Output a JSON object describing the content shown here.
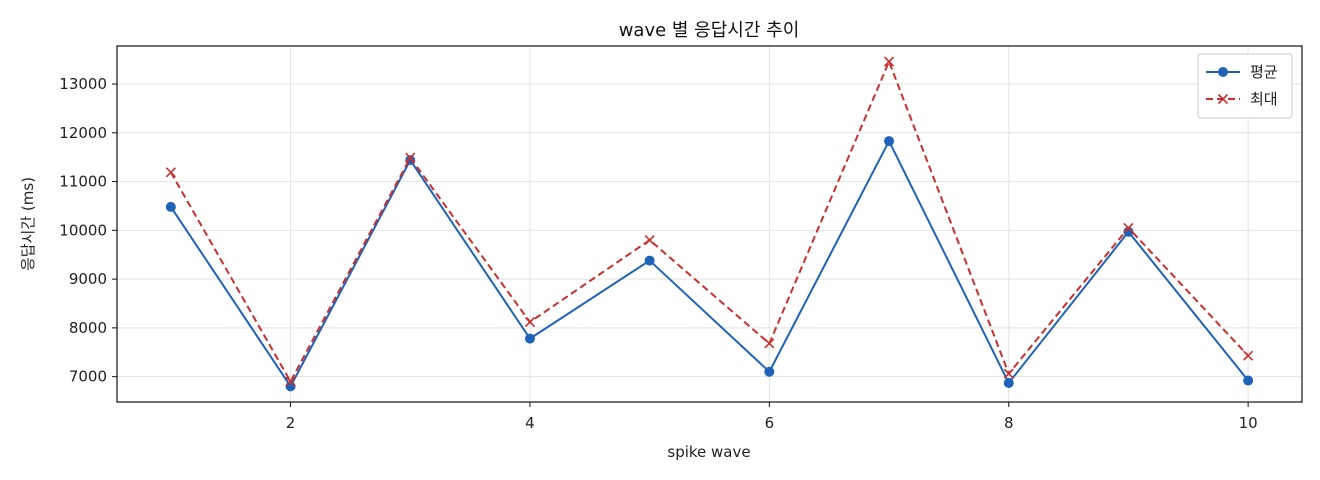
{
  "chart_data": {
    "type": "line",
    "title": "wave 별 응답시간 추이",
    "xlabel": "spike wave",
    "ylabel": "응답시간 (ms)",
    "x": [
      1,
      2,
      3,
      4,
      5,
      6,
      7,
      8,
      9,
      10
    ],
    "xticks": [
      2,
      4,
      6,
      8,
      10
    ],
    "yticks": [
      7000,
      8000,
      9000,
      10000,
      11000,
      12000,
      13000
    ],
    "xlim": [
      0.55,
      10.45
    ],
    "ylim": [
      6480,
      13780
    ],
    "grid": true,
    "legend_position": "top-right",
    "series": [
      {
        "name": "평균",
        "color": "#1f63b8",
        "marker": "circle",
        "dash": "solid",
        "values": [
          10480,
          6800,
          11440,
          7780,
          9380,
          7100,
          11830,
          6870,
          9970,
          6920
        ]
      },
      {
        "name": "최대",
        "color": "#c8302f",
        "marker": "x",
        "dash": "dashed",
        "values": [
          11190,
          6900,
          11490,
          8120,
          9800,
          7680,
          13460,
          7060,
          10050,
          7430
        ]
      }
    ]
  }
}
